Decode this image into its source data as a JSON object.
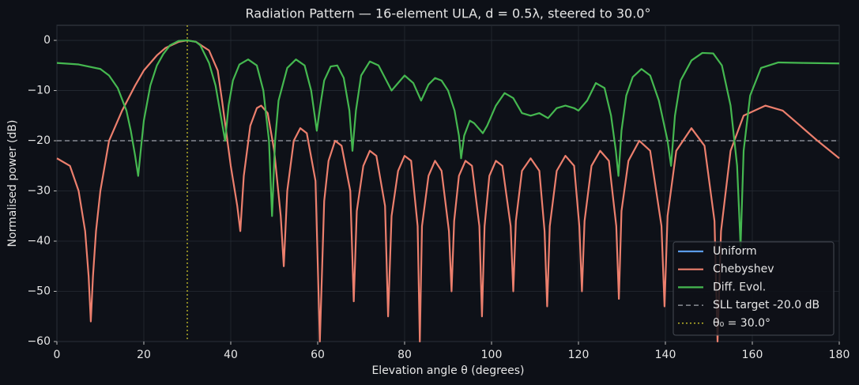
{
  "chart_data": {
    "type": "line",
    "title": "Radiation Pattern — 16-element ULA, d = 0.5λ, steered to 30.0°",
    "xlabel": "Elevation angle θ (degrees)",
    "ylabel": "Normalised power (dB)",
    "xlim": [
      0,
      180
    ],
    "ylim": [
      -60,
      3
    ],
    "xticks": [
      0,
      20,
      40,
      60,
      80,
      100,
      120,
      140,
      160,
      180
    ],
    "yticks": [
      {
        "value": -60,
        "label": "−60"
      },
      {
        "value": -50,
        "label": "−50"
      },
      {
        "value": -40,
        "label": "−40"
      },
      {
        "value": -30,
        "label": "−30"
      },
      {
        "value": -20,
        "label": "−20"
      },
      {
        "value": -10,
        "label": "−10"
      },
      0
    ],
    "grid": true,
    "legend": "lower right",
    "series": [
      {
        "name": "Uniform",
        "color": "#5b9be8"
      },
      {
        "name": "Chebyshev",
        "color": "#ec7f6d",
        "x": [
          0,
          3,
          5,
          6.5,
          7.3,
          7.8,
          8.3,
          9,
          10,
          12,
          15,
          18,
          20,
          23,
          25,
          28,
          30,
          32,
          35,
          37,
          38,
          40,
          41.5,
          42.2,
          43,
          44.5,
          46,
          47,
          48.5,
          50,
          51.5,
          52.2,
          53,
          54.5,
          56,
          57.5,
          59.5,
          60.5,
          61.5,
          62.5,
          64,
          65.5,
          67.5,
          68.3,
          69,
          70.5,
          72,
          73.5,
          75.5,
          76.2,
          77,
          78.5,
          80,
          81.5,
          83,
          83.5,
          84,
          85.5,
          87,
          88.5,
          90.2,
          90.8,
          91.4,
          92.5,
          94,
          95.5,
          97.2,
          97.8,
          98.4,
          99.5,
          101,
          102.5,
          104.4,
          105,
          105.6,
          107,
          109,
          111,
          112.2,
          112.8,
          113.4,
          115,
          117,
          119,
          120.2,
          120.8,
          121.4,
          123,
          125,
          127,
          128.7,
          129.3,
          129.9,
          131.5,
          134,
          136.5,
          139.1,
          139.8,
          140.5,
          142.5,
          146,
          149,
          151.3,
          152,
          152.8,
          155,
          158,
          163,
          167,
          171,
          175,
          180
        ],
        "values": [
          -23.5,
          -25,
          -30,
          -38,
          -47,
          -56,
          -47,
          -38,
          -30,
          -20,
          -14,
          -9,
          -6,
          -3,
          -1.5,
          -0.3,
          0,
          -0.3,
          -2,
          -6,
          -12,
          -25,
          -33,
          -38,
          -27,
          -17,
          -13.5,
          -13,
          -14.5,
          -22,
          -35,
          -45,
          -30,
          -20,
          -17.5,
          -18.5,
          -28,
          -60,
          -32,
          -24,
          -20,
          -21,
          -30,
          -52,
          -34,
          -25,
          -22,
          -23,
          -33,
          -55,
          -35,
          -26,
          -23,
          -24,
          -37,
          -60,
          -37,
          -27,
          -24,
          -26,
          -38,
          -50,
          -36,
          -27,
          -24,
          -25,
          -37,
          -55,
          -37,
          -27,
          -24,
          -25,
          -37,
          -50,
          -36,
          -26,
          -23.5,
          -26,
          -38,
          -53,
          -37,
          -26,
          -23,
          -25,
          -37,
          -50,
          -36,
          -25,
          -22,
          -24,
          -37,
          -51.5,
          -34,
          -24,
          -20,
          -22,
          -37,
          -53,
          -35,
          -22,
          -17.5,
          -21,
          -36,
          -60,
          -38,
          -22,
          -15,
          -13,
          -14,
          -17,
          -20,
          -23.5
        ]
      },
      {
        "name": "Diff. Evol.",
        "color": "#45b850",
        "x": [
          0,
          5,
          10,
          12,
          14,
          16,
          17,
          18,
          18.7,
          19.4,
          20,
          21.5,
          23,
          24.5,
          26,
          28,
          30,
          32,
          33,
          35,
          36.5,
          37.5,
          38.7,
          39.5,
          40.5,
          42,
          44,
          46,
          47.5,
          48.8,
          49.5,
          50.2,
          51,
          53,
          55,
          57,
          58.5,
          59.8,
          60.6,
          61.5,
          63,
          64.5,
          66,
          67.3,
          68,
          68.8,
          70,
          72,
          74,
          75.5,
          77,
          78.5,
          80,
          82,
          83.8,
          85.5,
          87,
          88.5,
          90,
          91.5,
          92.5,
          93,
          93.7,
          95,
          96,
          97,
          98,
          99,
          101,
          103,
          105,
          107,
          109,
          111,
          113,
          115,
          117,
          119,
          120,
          122,
          124,
          126,
          127.5,
          128.6,
          129.2,
          129.9,
          131,
          132.5,
          134.5,
          136.5,
          138.5,
          140.5,
          141.3,
          142.2,
          143.5,
          146,
          148.5,
          151,
          153,
          155,
          156.5,
          157.3,
          158,
          159.5,
          162,
          166,
          172,
          180
        ],
        "values": [
          -4.5,
          -4.8,
          -5.7,
          -7,
          -9.5,
          -14,
          -18,
          -23,
          -27,
          -21,
          -16,
          -9,
          -5,
          -2.7,
          -1,
          -0.1,
          0,
          -0.3,
          -1,
          -4.5,
          -9,
          -14,
          -20,
          -13,
          -8,
          -4.8,
          -3.8,
          -5,
          -10,
          -20,
          -35,
          -20,
          -12,
          -5.5,
          -3.8,
          -5,
          -10,
          -18,
          -13,
          -8,
          -5.2,
          -5,
          -7.5,
          -14,
          -22,
          -14,
          -7,
          -4.2,
          -5,
          -7.5,
          -10,
          -8.5,
          -7,
          -8.5,
          -12,
          -8.8,
          -7.5,
          -8,
          -10,
          -14,
          -19,
          -23.5,
          -19,
          -16,
          -16.5,
          -17.5,
          -18.5,
          -17,
          -13,
          -10.5,
          -11.5,
          -14.5,
          -15,
          -14.5,
          -15.5,
          -13.5,
          -13,
          -13.5,
          -14,
          -12,
          -8.5,
          -9.5,
          -15,
          -22,
          -27,
          -18,
          -11,
          -7.3,
          -5.7,
          -7,
          -12,
          -20,
          -25,
          -15,
          -8,
          -4,
          -2.5,
          -2.6,
          -5,
          -13,
          -25,
          -41,
          -22,
          -11,
          -5.5,
          -4.4,
          -4.5,
          -4.6
        ]
      }
    ],
    "reference_lines": [
      {
        "axis": "y",
        "value": -20,
        "label": "SLL target -20.0 dB",
        "color": "#a0a4ab",
        "style": "dashed"
      },
      {
        "axis": "x",
        "value": 30,
        "label": "θ₀ = 30.0°",
        "color": "#c9c22a",
        "style": "dotted"
      }
    ]
  }
}
